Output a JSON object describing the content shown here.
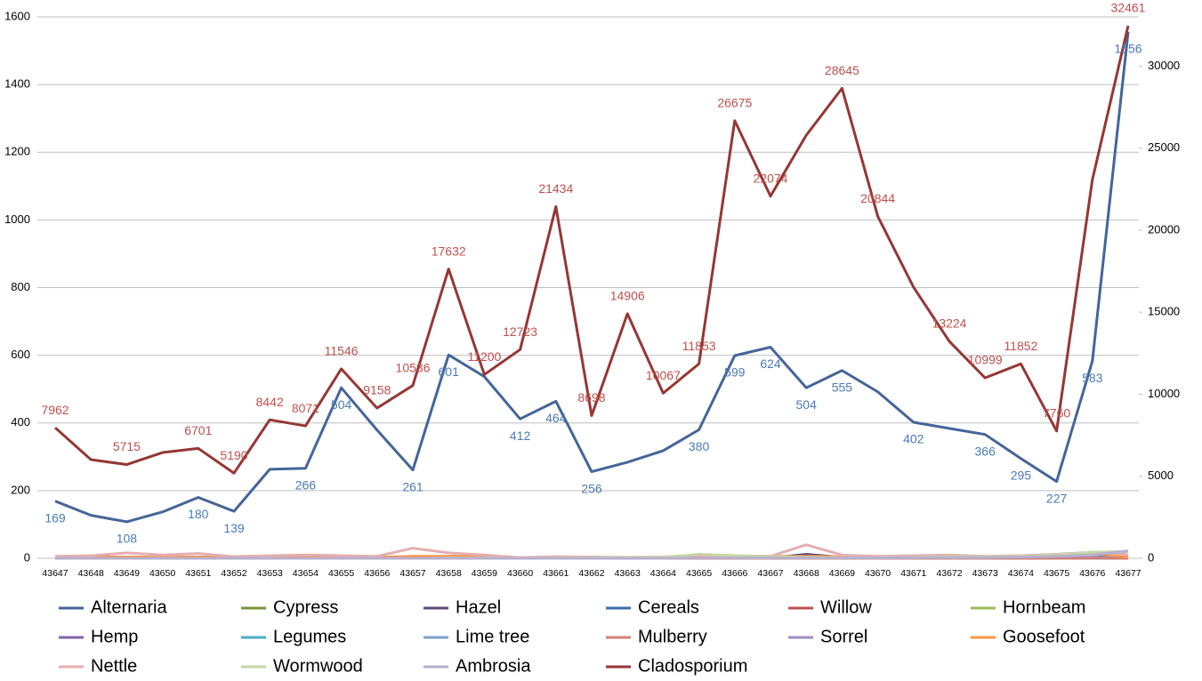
{
  "chart_data": {
    "type": "line",
    "categories": [
      "43647",
      "43648",
      "43649",
      "43650",
      "43651",
      "43652",
      "43653",
      "43654",
      "43655",
      "43656",
      "43657",
      "43658",
      "43659",
      "43660",
      "43661",
      "43662",
      "43663",
      "43664",
      "43665",
      "43666",
      "43667",
      "43668",
      "43669",
      "43670",
      "43671",
      "43672",
      "43673",
      "43674",
      "43675",
      "43676",
      "43677"
    ],
    "ylim": [
      0,
      1600
    ],
    "yticks": [
      0,
      200,
      400,
      600,
      800,
      1000,
      1200,
      1400,
      1600
    ],
    "y2lim": [
      0,
      33000
    ],
    "y2ticks": [
      0,
      5000,
      10000,
      15000,
      20000,
      25000,
      30000
    ],
    "grid": true,
    "legend": "bottom",
    "series": [
      {
        "name": "Alternaria",
        "color": "#44659a",
        "label_color": "#4a7ab5",
        "values": [
          169,
          127,
          108,
          137,
          180,
          139,
          263,
          266,
          504,
          379,
          261,
          601,
          537,
          412,
          464,
          256,
          284,
          318,
          380,
          599,
          624,
          504,
          555,
          492,
          402,
          384,
          366,
          295,
          227,
          583,
          1556
        ],
        "value_labels": [
          "169",
          null,
          "108",
          null,
          "180",
          "139",
          null,
          "266",
          "504",
          null,
          "261",
          "601",
          null,
          "412",
          "464",
          "256",
          null,
          null,
          "380",
          "599",
          "624",
          "504",
          "555",
          null,
          "402",
          null,
          "366",
          "295",
          "227",
          "583",
          "1556"
        ]
      },
      {
        "name": "Cypress",
        "color": "#77933c",
        "values": [
          2,
          1,
          1,
          0,
          1,
          0,
          0,
          0,
          0,
          0,
          0,
          0,
          0,
          0,
          0,
          0,
          0,
          0,
          0,
          0,
          0,
          0,
          0,
          0,
          0,
          0,
          0,
          0,
          0,
          0,
          0
        ]
      },
      {
        "name": "Hazel",
        "color": "#5f4a7b",
        "values": [
          3,
          4,
          3,
          2,
          3,
          1,
          1,
          2,
          1,
          0,
          1,
          1,
          0,
          0,
          1,
          0,
          0,
          0,
          0,
          1,
          1,
          12,
          3,
          1,
          0,
          1,
          0,
          1,
          0,
          1,
          5
        ]
      },
      {
        "name": "Cereals",
        "color": "#3b6eaa",
        "values": [
          0,
          0,
          0,
          0,
          0,
          0,
          0,
          0,
          0,
          0,
          1,
          2,
          2,
          0,
          1,
          0,
          0,
          1,
          2,
          3,
          4,
          5,
          2,
          1,
          1,
          2,
          1,
          2,
          3,
          5,
          10
        ]
      },
      {
        "name": "Willow",
        "color": "#c0504d",
        "values": [
          2,
          1,
          1,
          1,
          1,
          0,
          0,
          0,
          0,
          0,
          0,
          0,
          0,
          0,
          0,
          0,
          0,
          0,
          0,
          0,
          0,
          0,
          0,
          0,
          0,
          0,
          0,
          0,
          0,
          0,
          0
        ]
      },
      {
        "name": "Hornbeam",
        "color": "#9bbb59",
        "values": [
          1,
          1,
          0,
          0,
          0,
          0,
          0,
          0,
          0,
          0,
          0,
          0,
          0,
          0,
          0,
          0,
          0,
          0,
          0,
          0,
          0,
          0,
          0,
          0,
          0,
          0,
          0,
          0,
          0,
          0,
          0
        ]
      },
      {
        "name": "Hemp",
        "color": "#8064a2",
        "values": [
          0,
          0,
          0,
          0,
          0,
          0,
          0,
          0,
          0,
          0,
          0,
          1,
          1,
          0,
          1,
          0,
          0,
          1,
          2,
          2,
          2,
          4,
          2,
          1,
          2,
          2,
          1,
          2,
          3,
          4,
          8
        ]
      },
      {
        "name": "Legumes",
        "color": "#4bacc6",
        "values": [
          0,
          0,
          0,
          0,
          0,
          0,
          0,
          0,
          0,
          0,
          0,
          0,
          1,
          0,
          0,
          0,
          0,
          0,
          0,
          1,
          1,
          1,
          0,
          0,
          0,
          0,
          0,
          0,
          0,
          0,
          0
        ]
      },
      {
        "name": "Lime tree",
        "color": "#7f9fcf",
        "values": [
          1,
          2,
          3,
          2,
          2,
          1,
          1,
          1,
          1,
          1,
          1,
          2,
          2,
          1,
          1,
          1,
          1,
          1,
          1,
          1,
          1,
          1,
          1,
          1,
          1,
          1,
          1,
          1,
          1,
          1,
          2
        ]
      },
      {
        "name": "Mulberry",
        "color": "#d08078",
        "values": [
          3,
          3,
          2,
          2,
          2,
          1,
          1,
          1,
          1,
          0,
          1,
          1,
          0,
          0,
          0,
          0,
          0,
          0,
          0,
          0,
          0,
          0,
          0,
          0,
          0,
          0,
          0,
          0,
          0,
          0,
          0
        ]
      },
      {
        "name": "Sorrel",
        "color": "#a08bbf",
        "values": [
          2,
          3,
          4,
          3,
          4,
          2,
          4,
          6,
          4,
          2,
          4,
          6,
          5,
          1,
          3,
          2,
          2,
          3,
          4,
          5,
          6,
          5,
          4,
          3,
          4,
          5,
          3,
          4,
          6,
          8,
          20
        ]
      },
      {
        "name": "Goosefoot",
        "color": "#f79646",
        "values": [
          1,
          2,
          4,
          3,
          4,
          2,
          3,
          4,
          4,
          3,
          6,
          6,
          5,
          1,
          2,
          2,
          2,
          3,
          5,
          6,
          6,
          6,
          5,
          4,
          6,
          8,
          5,
          7,
          10,
          14,
          4
        ]
      },
      {
        "name": "Nettle",
        "color": "#e6aeb0",
        "values": [
          6,
          8,
          16,
          10,
          14,
          5,
          8,
          10,
          8,
          6,
          30,
          16,
          10,
          2,
          5,
          4,
          3,
          4,
          10,
          8,
          6,
          40,
          10,
          6,
          8,
          10,
          6,
          8,
          12,
          18,
          10
        ]
      },
      {
        "name": "Wormwood",
        "color": "#c4d7a7",
        "values": [
          0,
          0,
          0,
          0,
          0,
          0,
          0,
          0,
          0,
          0,
          0,
          1,
          1,
          0,
          1,
          2,
          2,
          3,
          12,
          8,
          5,
          3,
          2,
          2,
          3,
          5,
          4,
          6,
          10,
          18,
          20
        ]
      },
      {
        "name": "Ambrosia",
        "color": "#b8b0cf",
        "values": [
          0,
          0,
          0,
          0,
          0,
          0,
          0,
          0,
          0,
          0,
          0,
          0,
          0,
          0,
          0,
          0,
          0,
          0,
          1,
          1,
          1,
          1,
          1,
          1,
          2,
          2,
          2,
          4,
          6,
          10,
          22
        ]
      },
      {
        "name": "Cladosporium",
        "color": "#953735",
        "label_color": "#c0504d",
        "axis": "y2",
        "values": [
          7962,
          6013,
          5715,
          6446,
          6701,
          5190,
          8442,
          8071,
          11546,
          9158,
          10536,
          17632,
          11200,
          12723,
          21434,
          8698,
          14906,
          10067,
          11853,
          26675,
          22074,
          25786,
          28645,
          20844,
          16522,
          13224,
          10999,
          11852,
          7760,
          23077,
          32461
        ],
        "value_labels": [
          "7962",
          null,
          "5715",
          null,
          "6701",
          "5190",
          "8442",
          "8071",
          "11546",
          "9158",
          "10536",
          "17632",
          "11200",
          "12723",
          "21434",
          "8698",
          "14906",
          "10067",
          "11853",
          "26675",
          "22074",
          null,
          "28645",
          "20844",
          null,
          "13224",
          "10999",
          "11852",
          "7760",
          null,
          "32461"
        ]
      }
    ]
  }
}
